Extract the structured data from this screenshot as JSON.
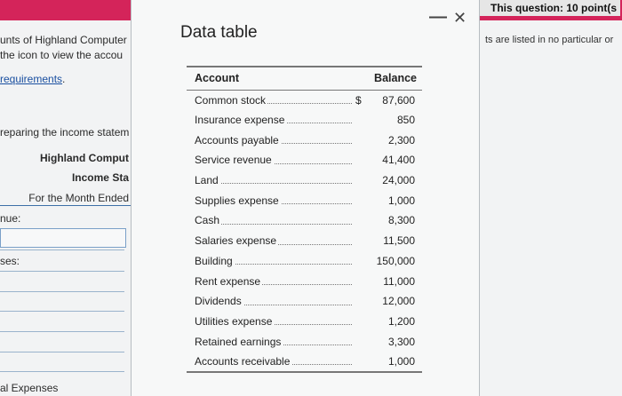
{
  "header": {
    "question_label": "This question: 10 point(s"
  },
  "left_page": {
    "line1": "unts of Highland Computer",
    "line2": "the icon to view the accou",
    "requirements_link": "requirements",
    "requirements_period": ".",
    "preparing": "reparing the income statem",
    "company": "Highland Comput",
    "statement": "Income Sta",
    "period": "For the Month Ended",
    "revenue_label": "nue:",
    "expenses_label": "ses:",
    "total_expenses": "al Expenses"
  },
  "right_page": {
    "note": "ts are listed in no particular or"
  },
  "modal": {
    "title": "Data table",
    "minimize_glyph": "—",
    "close_glyph": "✕",
    "table": {
      "headers": [
        "Account",
        "Balance"
      ],
      "currency_symbol": "$",
      "rows": [
        {
          "account": "Common stock",
          "currency": "$",
          "balance": "87,600"
        },
        {
          "account": "Insurance expense",
          "currency": "",
          "balance": "850"
        },
        {
          "account": "Accounts payable",
          "currency": "",
          "balance": "2,300"
        },
        {
          "account": "Service revenue",
          "currency": "",
          "balance": "41,400"
        },
        {
          "account": "Land",
          "currency": "",
          "balance": "24,000"
        },
        {
          "account": "Supplies expense",
          "currency": "",
          "balance": "1,000"
        },
        {
          "account": "Cash",
          "currency": "",
          "balance": "8,300"
        },
        {
          "account": "Salaries expense",
          "currency": "",
          "balance": "11,500"
        },
        {
          "account": "Building",
          "currency": "",
          "balance": "150,000"
        },
        {
          "account": "Rent expense",
          "currency": "",
          "balance": "11,000"
        },
        {
          "account": "Dividends",
          "currency": "",
          "balance": "12,000"
        },
        {
          "account": "Utilities expense",
          "currency": "",
          "balance": "1,200"
        },
        {
          "account": "Retained earnings",
          "currency": "",
          "balance": "3,300"
        },
        {
          "account": "Accounts receivable",
          "currency": "",
          "balance": "1,000"
        }
      ]
    }
  },
  "colors": {
    "topbar": "#d4245a",
    "link": "#1a4fa0",
    "modal_bg": "#f7f8f8"
  }
}
